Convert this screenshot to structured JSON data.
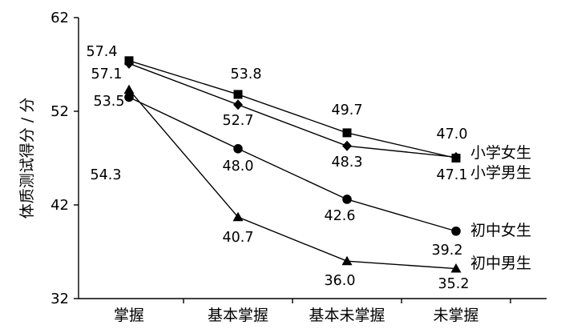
{
  "chart_data": {
    "type": "line",
    "title": "",
    "xlabel": "",
    "ylabel": "体质测试得分 / 分",
    "ylim": [
      32,
      62
    ],
    "yticks": [
      32,
      42,
      52,
      62
    ],
    "categories": [
      "掌握",
      "基本掌握",
      "基本未掌握",
      "未掌握"
    ],
    "grid": false,
    "series": [
      {
        "name": "小学女生",
        "marker": "square",
        "values": [
          57.4,
          53.8,
          49.7,
          47.0
        ]
      },
      {
        "name": "小学男生",
        "marker": "diamond",
        "values": [
          57.1,
          52.7,
          48.3,
          47.1
        ]
      },
      {
        "name": "初中女生",
        "marker": "circle",
        "values": [
          53.5,
          48.0,
          42.6,
          39.2
        ]
      },
      {
        "name": "初中男生",
        "marker": "triangle",
        "values": [
          54.3,
          40.7,
          36.0,
          35.2
        ]
      }
    ],
    "data_labels": [
      [
        "57.4",
        "53.8",
        "49.7",
        "47.0"
      ],
      [
        "57.1",
        "52.7",
        "48.3",
        "47.1"
      ],
      [
        "53.5",
        "48.0",
        "42.6",
        "39.2"
      ],
      [
        "54.3",
        "40.7",
        "36.0",
        "35.2"
      ]
    ]
  }
}
